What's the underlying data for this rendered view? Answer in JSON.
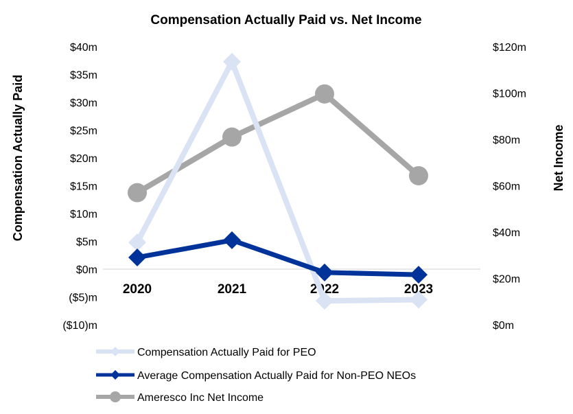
{
  "chart_data": {
    "type": "line",
    "title": "Compensation Actually Paid vs. Net Income",
    "categories": [
      "2020",
      "2021",
      "2022",
      "2023"
    ],
    "y_left": {
      "label": "Compensation Actually Paid",
      "range": [
        -10,
        40
      ],
      "ticks": [
        40,
        35,
        30,
        25,
        20,
        15,
        10,
        5,
        0,
        -5,
        -10
      ],
      "tick_labels": [
        "$40m",
        "$35m",
        "$30m",
        "$25m",
        "$20m",
        "$15m",
        "$10m",
        "$5m",
        "$0m",
        "($5)m",
        "($10)m"
      ]
    },
    "y_right": {
      "label": "Net Income",
      "range": [
        0,
        120
      ],
      "ticks": [
        120,
        100,
        80,
        60,
        40,
        20,
        0
      ],
      "tick_labels": [
        "$120m",
        "$100m",
        "$80m",
        "$60m",
        "$40m",
        "$20m",
        "$0m"
      ]
    },
    "series": [
      {
        "name": "Compensation Actually Paid for PEO",
        "axis": "left",
        "marker": "diamond",
        "color": "#dae3f3",
        "values": [
          4.8,
          37.3,
          -5.7,
          -5.5
        ]
      },
      {
        "name": "Average Compensation Actually Paid for Non-PEO NEOs",
        "axis": "left",
        "marker": "diamond",
        "color": "#003399",
        "values": [
          2.1,
          5.2,
          -0.6,
          -1.0
        ]
      },
      {
        "name": "Ameresco Inc Net Income",
        "axis": "right",
        "marker": "circle",
        "color": "#a6a6a6",
        "values": [
          57,
          81,
          99.6,
          64.3
        ]
      }
    ],
    "grid": false,
    "legend": "bottom"
  }
}
